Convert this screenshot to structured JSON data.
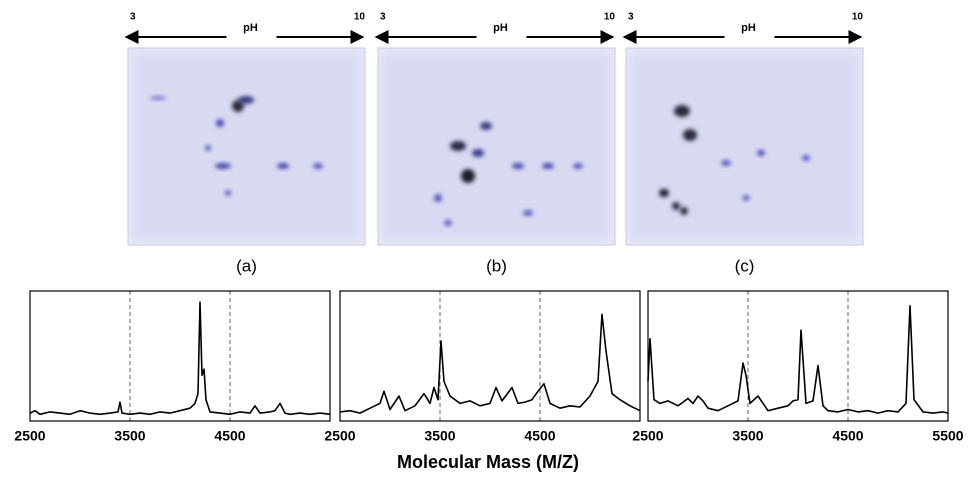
{
  "gels": [
    {
      "ph_left": "3",
      "ph_label": "pH",
      "ph_right": "10",
      "caption": "(a)"
    },
    {
      "ph_left": "3",
      "ph_label": "pH",
      "ph_right": "10",
      "caption": "(b)"
    },
    {
      "ph_left": "3",
      "ph_label": "pH",
      "ph_right": "10",
      "caption": "(c)"
    }
  ],
  "chart_data": [
    {
      "type": "line",
      "x": [
        2500,
        2550,
        2600,
        2700,
        2800,
        2900,
        3000,
        3100,
        3200,
        3300,
        3380,
        3400,
        3420,
        3500,
        3600,
        3700,
        3800,
        3900,
        4000,
        4100,
        4150,
        4180,
        4200,
        4220,
        4240,
        4260,
        4300,
        4400,
        4500,
        4600,
        4700,
        4750,
        4800,
        4900,
        4950,
        5000,
        5050,
        5100,
        5200,
        5300,
        5400,
        5500
      ],
      "series": [
        {
          "color": "#000000",
          "values": [
            4,
            6,
            3,
            5,
            4,
            3,
            6,
            4,
            3,
            4,
            5,
            13,
            4,
            3,
            4,
            3,
            5,
            4,
            6,
            8,
            12,
            20,
            95,
            35,
            40,
            15,
            5,
            4,
            3,
            5,
            4,
            10,
            4,
            5,
            6,
            12,
            4,
            3,
            4,
            3,
            4,
            3
          ]
        }
      ],
      "xlim": [
        2500,
        5500
      ],
      "xticks": [
        2500,
        3500,
        4500
      ],
      "ylim": [
        0,
        100
      ],
      "grid": true
    },
    {
      "type": "line",
      "xlabel": "Molecular Mass (M/Z)",
      "x": [
        2500,
        2600,
        2700,
        2800,
        2900,
        2940,
        3000,
        3090,
        3150,
        3250,
        3340,
        3400,
        3440,
        3480,
        3510,
        3540,
        3600,
        3700,
        3800,
        3900,
        4000,
        4060,
        4120,
        4220,
        4280,
        4350,
        4420,
        4480,
        4540,
        4600,
        4700,
        4800,
        4900,
        5000,
        5080,
        5120,
        5160,
        5220,
        5300,
        5400,
        5500
      ],
      "series": [
        {
          "color": "#000000",
          "values": [
            5,
            6,
            4,
            8,
            12,
            22,
            7,
            18,
            6,
            10,
            20,
            12,
            25,
            15,
            63,
            30,
            18,
            12,
            14,
            10,
            12,
            25,
            14,
            25,
            12,
            13,
            15,
            22,
            28,
            12,
            8,
            10,
            9,
            18,
            30,
            85,
            55,
            20,
            15,
            10,
            6
          ]
        }
      ],
      "xlim": [
        2500,
        5500
      ],
      "xticks": [
        2500,
        3500,
        4500
      ],
      "ylim": [
        0,
        100
      ],
      "grid": true
    },
    {
      "type": "line",
      "x": [
        2500,
        2520,
        2560,
        2620,
        2700,
        2800,
        2900,
        2950,
        3000,
        3050,
        3100,
        3200,
        3300,
        3400,
        3450,
        3480,
        3520,
        3600,
        3700,
        3800,
        3900,
        3950,
        4000,
        4030,
        4080,
        4150,
        4200,
        4250,
        4300,
        4400,
        4500,
        4600,
        4700,
        4800,
        4900,
        5000,
        5080,
        5120,
        5160,
        5250,
        5350,
        5450,
        5500
      ],
      "series": [
        {
          "color": "#000000",
          "values": [
            30,
            65,
            15,
            12,
            14,
            10,
            16,
            12,
            18,
            14,
            8,
            6,
            10,
            14,
            45,
            35,
            12,
            18,
            6,
            8,
            10,
            14,
            15,
            72,
            12,
            14,
            43,
            10,
            6,
            5,
            7,
            5,
            6,
            4,
            6,
            5,
            12,
            92,
            15,
            5,
            4,
            5,
            4
          ]
        }
      ],
      "xlim": [
        2500,
        5500
      ],
      "xticks": [
        2500,
        3500,
        4500,
        5500
      ],
      "ylim": [
        0,
        100
      ],
      "grid": true
    }
  ]
}
